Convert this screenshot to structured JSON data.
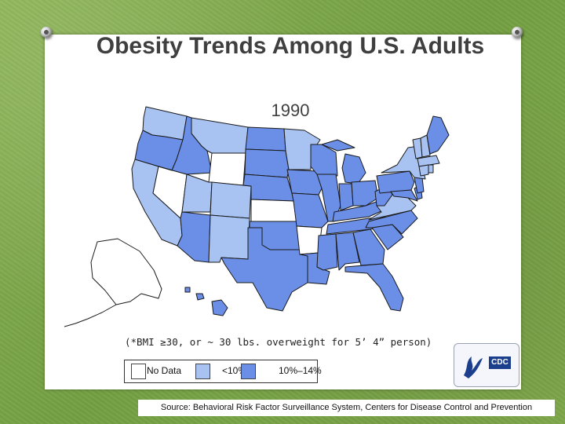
{
  "title": "Obesity Trends Among U.S. Adults",
  "year": "1990",
  "note": "(*BMI ≥30, or ~ 30 lbs. overweight for 5’ 4” person)",
  "legend": [
    {
      "label": "No Data",
      "color": "#ffffff"
    },
    {
      "label": "<10%",
      "color": "#a8c2f2"
    },
    {
      "label": "10%–14%",
      "color": "#6b8fe6"
    }
  ],
  "cdc_logo_text": "CDC",
  "source": "Source: Behavioral Risk Factor Surveillance System, Centers for Disease Control and Prevention",
  "colors": {
    "no_data": "#ffffff",
    "under_10": "#a8c2f2",
    "ten_to_14": "#6b8fe6",
    "background_green": "#7fa64a",
    "title_text": "#3f3f3f"
  },
  "states": {
    "no_data": [
      "NV",
      "WY",
      "KS",
      "AR",
      "AK"
    ],
    "under_10": [
      "WA",
      "CA",
      "MT",
      "UT",
      "CO",
      "NM",
      "MN",
      "NY",
      "VA",
      "VT",
      "MA",
      "NH",
      "RI",
      "CT"
    ],
    "ten_to_14": [
      "OR",
      "ID",
      "AZ",
      "ND",
      "SD",
      "NE",
      "OK",
      "TX",
      "IA",
      "MO",
      "LA",
      "WI",
      "IL",
      "MI",
      "IN",
      "OH",
      "KY",
      "TN",
      "MS",
      "AL",
      "GA",
      "FL",
      "SC",
      "NC",
      "WV",
      "PA",
      "MD",
      "DE",
      "NJ",
      "ME",
      "HI"
    ]
  }
}
